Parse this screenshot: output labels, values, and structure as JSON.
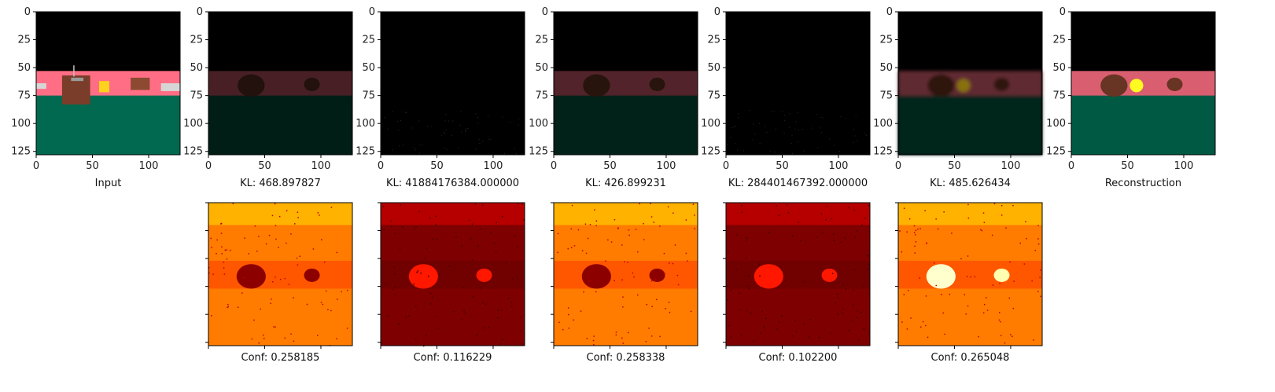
{
  "chart_data": {
    "type": "image-grid",
    "x_ticks": [
      0,
      50,
      100
    ],
    "y_ticks": [
      0,
      25,
      50,
      75,
      100,
      125
    ],
    "xlim": [
      0,
      128
    ],
    "ylim": [
      128,
      0
    ],
    "colors": {
      "sky": "#000000",
      "wall": "#ff6e84",
      "floor": "#00694f",
      "pot": "#7a3d2a",
      "gold": "#ffd21c"
    },
    "heatmap_colormap": "hot",
    "top_row": [
      {
        "caption": "Input",
        "kind": "input",
        "brightness": 1.0
      },
      {
        "caption": "KL: 468.897827",
        "kind": "slot",
        "brightness": 0.28
      },
      {
        "caption": "KL: 41884176384.000000",
        "kind": "empty",
        "brightness": 0.06
      },
      {
        "caption": "KL: 426.899231",
        "kind": "slot",
        "brightness": 0.32
      },
      {
        "caption": "KL: 284401467392.000000",
        "kind": "empty",
        "brightness": 0.05
      },
      {
        "caption": "KL: 485.626434",
        "kind": "slot-blur",
        "brightness": 0.38
      },
      {
        "caption": "Reconstruction",
        "kind": "recon",
        "brightness": 0.85
      }
    ],
    "bottom_row": [
      {
        "caption": "Conf: 0.258185",
        "conf": 0.258185
      },
      {
        "caption": "Conf: 0.116229",
        "conf": 0.116229
      },
      {
        "caption": "Conf: 0.258338",
        "conf": 0.258338
      },
      {
        "caption": "Conf: 0.102200",
        "conf": 0.1022
      },
      {
        "caption": "Conf: 0.265048",
        "conf": 0.265048
      }
    ]
  }
}
